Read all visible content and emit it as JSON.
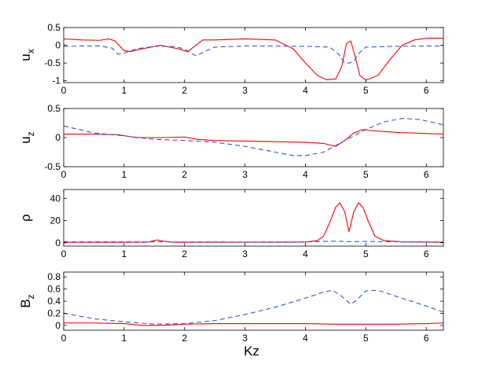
{
  "figure": {
    "xlabel": "Kz"
  },
  "chart_data": [
    {
      "type": "line",
      "ylabel": "u",
      "ylabel_sub": "x",
      "xlim": [
        0,
        6.283
      ],
      "ylim": [
        -1.05,
        0.5
      ],
      "xticks": [
        "0",
        "1",
        "2",
        "3",
        "4",
        "5",
        "6"
      ],
      "yticks": [
        "0.5",
        "0",
        "-0.5",
        "-1"
      ],
      "ytick_values": [
        0.5,
        0,
        -0.5,
        -1
      ],
      "series": [
        {
          "color": "#ff0000",
          "style": "solid",
          "x": [
            0,
            0.3,
            0.6,
            0.75,
            0.85,
            1.0,
            1.1,
            1.3,
            1.6,
            1.9,
            2.05,
            2.15,
            2.3,
            2.5,
            3.0,
            3.5,
            3.8,
            4.0,
            4.2,
            4.35,
            4.5,
            4.6,
            4.68,
            4.75,
            4.82,
            4.9,
            5.0,
            5.2,
            5.4,
            5.6,
            5.8,
            6.0,
            6.283
          ],
          "y": [
            0.18,
            0.15,
            0.14,
            0.18,
            0.12,
            -0.15,
            -0.18,
            -0.1,
            0.0,
            -0.1,
            -0.18,
            -0.05,
            0.15,
            0.15,
            0.18,
            0.15,
            -0.1,
            -0.5,
            -0.85,
            -0.97,
            -0.95,
            -0.6,
            0.05,
            0.12,
            -0.3,
            -0.85,
            -0.98,
            -0.85,
            -0.4,
            0.0,
            0.15,
            0.2,
            0.2
          ]
        },
        {
          "color": "#3355dd",
          "style": "dashed",
          "x": [
            0,
            0.3,
            0.6,
            0.8,
            0.9,
            1.0,
            1.2,
            1.5,
            1.8,
            2.0,
            2.1,
            2.2,
            2.3,
            2.5,
            3.0,
            3.5,
            4.0,
            4.4,
            4.55,
            4.65,
            4.72,
            4.8,
            4.9,
            5.0,
            5.5,
            6.0,
            6.283
          ],
          "y": [
            -0.03,
            -0.02,
            -0.02,
            -0.08,
            -0.25,
            -0.22,
            -0.1,
            -0.03,
            -0.03,
            -0.1,
            -0.22,
            -0.3,
            -0.2,
            -0.05,
            -0.02,
            -0.02,
            -0.03,
            -0.05,
            -0.25,
            -0.5,
            -0.5,
            -0.45,
            -0.2,
            -0.05,
            -0.03,
            -0.02,
            -0.02
          ]
        }
      ]
    },
    {
      "type": "line",
      "ylabel": "u",
      "ylabel_sub": "z",
      "xlim": [
        0,
        6.283
      ],
      "ylim": [
        -0.5,
        0.5
      ],
      "xticks": [
        "0",
        "1",
        "2",
        "3",
        "4",
        "5",
        "6"
      ],
      "yticks": [
        "0.5",
        "0",
        "-0.5"
      ],
      "ytick_values": [
        0.5,
        0,
        -0.5
      ],
      "series": [
        {
          "color": "#ff0000",
          "style": "solid",
          "x": [
            0,
            0.5,
            0.9,
            1.2,
            1.6,
            2.0,
            2.2,
            2.5,
            3.0,
            3.5,
            4.0,
            4.3,
            4.5,
            4.65,
            4.8,
            4.95,
            5.1,
            5.5,
            6.0,
            6.283
          ],
          "y": [
            0.06,
            0.06,
            0.05,
            0.0,
            0.0,
            0.01,
            -0.03,
            -0.05,
            -0.06,
            -0.07,
            -0.08,
            -0.1,
            -0.15,
            -0.05,
            0.08,
            0.14,
            0.12,
            0.09,
            0.07,
            0.06
          ],
          "name": ""
        },
        {
          "color": "#3355dd",
          "style": "dashed",
          "x": [
            0,
            0.5,
            1.0,
            1.5,
            2.0,
            2.5,
            3.0,
            3.5,
            3.8,
            4.0,
            4.3,
            4.6,
            5.0,
            5.3,
            5.6,
            5.9,
            6.283
          ],
          "y": [
            0.2,
            0.08,
            0.03,
            -0.03,
            -0.05,
            -0.08,
            -0.15,
            -0.25,
            -0.31,
            -0.31,
            -0.25,
            -0.08,
            0.14,
            0.27,
            0.33,
            0.31,
            0.22
          ]
        }
      ]
    },
    {
      "type": "line",
      "ylabel": "ρ",
      "ylabel_sub": "",
      "xlim": [
        0,
        6.283
      ],
      "ylim": [
        -3,
        48
      ],
      "xticks": [
        "0",
        "1",
        "2",
        "3",
        "4",
        "5",
        "6"
      ],
      "yticks": [
        "40",
        "20",
        "0"
      ],
      "ytick_values": [
        40,
        20,
        0
      ],
      "series": [
        {
          "color": "#ff0000",
          "style": "solid",
          "x": [
            0,
            1.0,
            1.4,
            1.5,
            1.55,
            1.65,
            1.8,
            2.5,
            3.5,
            4.0,
            4.2,
            4.3,
            4.4,
            4.5,
            4.57,
            4.65,
            4.72,
            4.8,
            4.88,
            4.95,
            5.05,
            5.15,
            5.3,
            5.6,
            6.283
          ],
          "y": [
            0.5,
            0.5,
            0.6,
            2.0,
            2.5,
            1.5,
            0.5,
            0.5,
            0.5,
            0.7,
            2.0,
            6.0,
            18.0,
            32.0,
            36.0,
            28.0,
            10.0,
            28.0,
            36.0,
            32.0,
            18.0,
            6.0,
            2.0,
            0.8,
            0.5
          ]
        },
        {
          "color": "#3355dd",
          "style": "dashed",
          "x": [
            0,
            1.0,
            2.0,
            3.0,
            4.0,
            4.5,
            4.75,
            5.0,
            5.5,
            6.283
          ],
          "y": [
            1.0,
            0.9,
            0.8,
            0.7,
            0.8,
            1.5,
            1.0,
            1.2,
            0.9,
            0.8
          ]
        }
      ]
    },
    {
      "type": "line",
      "ylabel": "B",
      "ylabel_sub": "z",
      "xlim": [
        0,
        6.283
      ],
      "ylim": [
        -0.08,
        0.88
      ],
      "xticks": [
        "0",
        "1",
        "2",
        "3",
        "4",
        "5",
        "6"
      ],
      "yticks": [
        "0.8",
        "0.6",
        "0.4",
        "0.2",
        "0"
      ],
      "ytick_values": [
        0.8,
        0.6,
        0.4,
        0.2,
        0
      ],
      "series": [
        {
          "color": "#ff0000",
          "style": "solid",
          "x": [
            0,
            0.5,
            1.0,
            1.3,
            1.6,
            2.0,
            2.5,
            3.0,
            3.5,
            4.0,
            4.5,
            5.0,
            5.5,
            6.0,
            6.283
          ],
          "y": [
            0.04,
            0.04,
            0.03,
            0.0,
            0.0,
            0.02,
            0.03,
            0.03,
            0.03,
            0.03,
            0.02,
            0.02,
            0.02,
            0.03,
            0.04
          ]
        },
        {
          "color": "#3355dd",
          "style": "dashed",
          "x": [
            0,
            0.5,
            1.0,
            1.5,
            2.0,
            2.5,
            3.0,
            3.5,
            4.0,
            4.3,
            4.45,
            4.6,
            4.75,
            4.85,
            5.0,
            5.2,
            5.5,
            6.0,
            6.283
          ],
          "y": [
            0.2,
            0.11,
            0.06,
            0.02,
            0.03,
            0.08,
            0.18,
            0.3,
            0.45,
            0.55,
            0.58,
            0.48,
            0.35,
            0.42,
            0.57,
            0.58,
            0.48,
            0.32,
            0.22
          ]
        }
      ]
    }
  ]
}
